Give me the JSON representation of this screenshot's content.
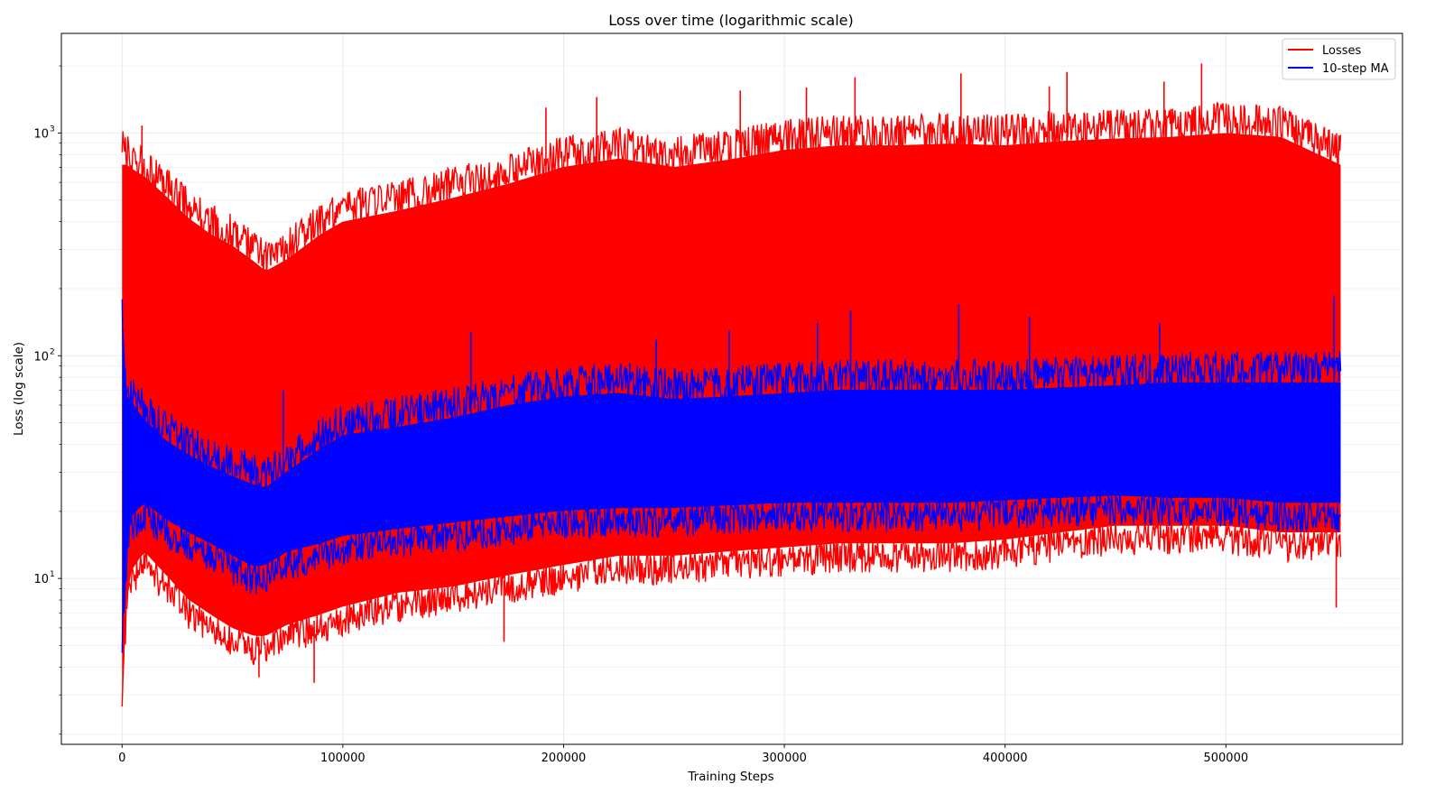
{
  "chart_data": {
    "type": "line",
    "title": "Loss over time (logarithmic scale)",
    "xlabel": "Training Steps",
    "ylabel": "Loss (log scale)",
    "xlim": [
      -27500,
      580000
    ],
    "ylim": [
      1.8,
      2800
    ],
    "yscale": "log",
    "grid": true,
    "legend_position": "top-right",
    "x_ticks": [
      0,
      100000,
      200000,
      300000,
      400000,
      500000
    ],
    "x_tick_labels": [
      "0",
      "100000",
      "200000",
      "300000",
      "400000",
      "500000"
    ],
    "y_ticks": [
      10,
      100,
      1000
    ],
    "y_tick_labels": [
      "10",
      "10",
      "10"
    ],
    "y_tick_exponents": [
      "1",
      "2",
      "3"
    ],
    "series": [
      {
        "name": "Losses",
        "color": "#ff0000",
        "x": [
          0,
          500,
          3000,
          10000,
          20000,
          30000,
          40000,
          50000,
          60000,
          65000,
          75000,
          90000,
          100000,
          125000,
          150000,
          175000,
          200000,
          225000,
          250000,
          275000,
          300000,
          325000,
          350000,
          375000,
          400000,
          425000,
          450000,
          475000,
          500000,
          525000,
          552000
        ],
        "upper": [
          900,
          940,
          880,
          800,
          650,
          520,
          440,
          390,
          330,
          300,
          340,
          440,
          500,
          560,
          640,
          740,
          880,
          960,
          880,
          950,
          1050,
          1100,
          1100,
          1120,
          1100,
          1150,
          1180,
          1200,
          1250,
          1200,
          900
        ],
        "lower": [
          2.4,
          4.5,
          9,
          11.5,
          9,
          7,
          6,
          5.2,
          4.8,
          4.8,
          5.4,
          6,
          6.5,
          7.5,
          8,
          9,
          10,
          11,
          11,
          11.5,
          12,
          12.5,
          12.5,
          12.5,
          13,
          14,
          15,
          15,
          15,
          14,
          14
        ],
        "spikes": [
          {
            "x": 9000,
            "y": 1080
          },
          {
            "x": 192000,
            "y": 1300
          },
          {
            "x": 215000,
            "y": 1450
          },
          {
            "x": 280000,
            "y": 1550
          },
          {
            "x": 310000,
            "y": 1600
          },
          {
            "x": 332000,
            "y": 1780
          },
          {
            "x": 380000,
            "y": 1850
          },
          {
            "x": 428000,
            "y": 1880
          },
          {
            "x": 489000,
            "y": 2050
          },
          {
            "x": 420000,
            "y": 1620
          },
          {
            "x": 472000,
            "y": 1700
          },
          {
            "x": 87000,
            "y": 3.4
          },
          {
            "x": 62000,
            "y": 3.6
          },
          {
            "x": 173000,
            "y": 5.2
          },
          {
            "x": 550000,
            "y": 7.4
          }
        ]
      },
      {
        "name": "10-step MA",
        "color": "#0000ff",
        "x": [
          0,
          500,
          3000,
          10000,
          20000,
          30000,
          40000,
          50000,
          60000,
          65000,
          75000,
          90000,
          100000,
          125000,
          150000,
          175000,
          200000,
          225000,
          250000,
          275000,
          300000,
          325000,
          350000,
          375000,
          400000,
          425000,
          450000,
          475000,
          500000,
          525000,
          552000
        ],
        "upper": [
          210,
          85,
          80,
          65,
          52,
          45,
          40,
          36,
          33,
          32,
          38,
          48,
          55,
          60,
          66,
          75,
          82,
          85,
          80,
          82,
          85,
          88,
          88,
          88,
          88,
          90,
          92,
          95,
          95,
          95,
          95
        ],
        "lower": [
          4.5,
          7,
          16,
          19,
          16,
          14,
          12.5,
          11,
          9.8,
          10,
          11.5,
          12.5,
          13.5,
          14.5,
          15.5,
          16.5,
          17.5,
          18,
          18,
          18.5,
          19,
          19,
          19,
          19,
          19.5,
          20,
          20.5,
          20,
          20,
          19,
          19
        ],
        "spikes": [
          {
            "x": 158000,
            "y": 128
          },
          {
            "x": 242000,
            "y": 118
          },
          {
            "x": 275000,
            "y": 130
          },
          {
            "x": 315000,
            "y": 140
          },
          {
            "x": 330000,
            "y": 160
          },
          {
            "x": 379000,
            "y": 170
          },
          {
            "x": 411000,
            "y": 150
          },
          {
            "x": 470000,
            "y": 140
          },
          {
            "x": 549000,
            "y": 185
          },
          {
            "x": 73000,
            "y": 70
          }
        ]
      }
    ]
  }
}
